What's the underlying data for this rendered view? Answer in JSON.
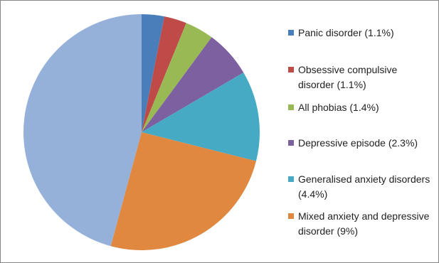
{
  "chart_data": {
    "type": "pie",
    "categories": [
      "Panic disorder (1.1%)",
      "Obsessive compulsive disorder (1.1%)",
      "All phobias (1.4%)",
      "Depressive episode (2.3%)",
      "Generalised anxiety disorders (4.4%)",
      "Mixed anxiety and depressive disorder (9%)",
      null
    ],
    "values": [
      1.1,
      1.1,
      1.4,
      2.3,
      4.4,
      9,
      16.3
    ],
    "colors": [
      "#4a7ebb",
      "#be4b48",
      "#98b954",
      "#7d60a0",
      "#46aac5",
      "#e0883f",
      "#95b1d9"
    ]
  }
}
